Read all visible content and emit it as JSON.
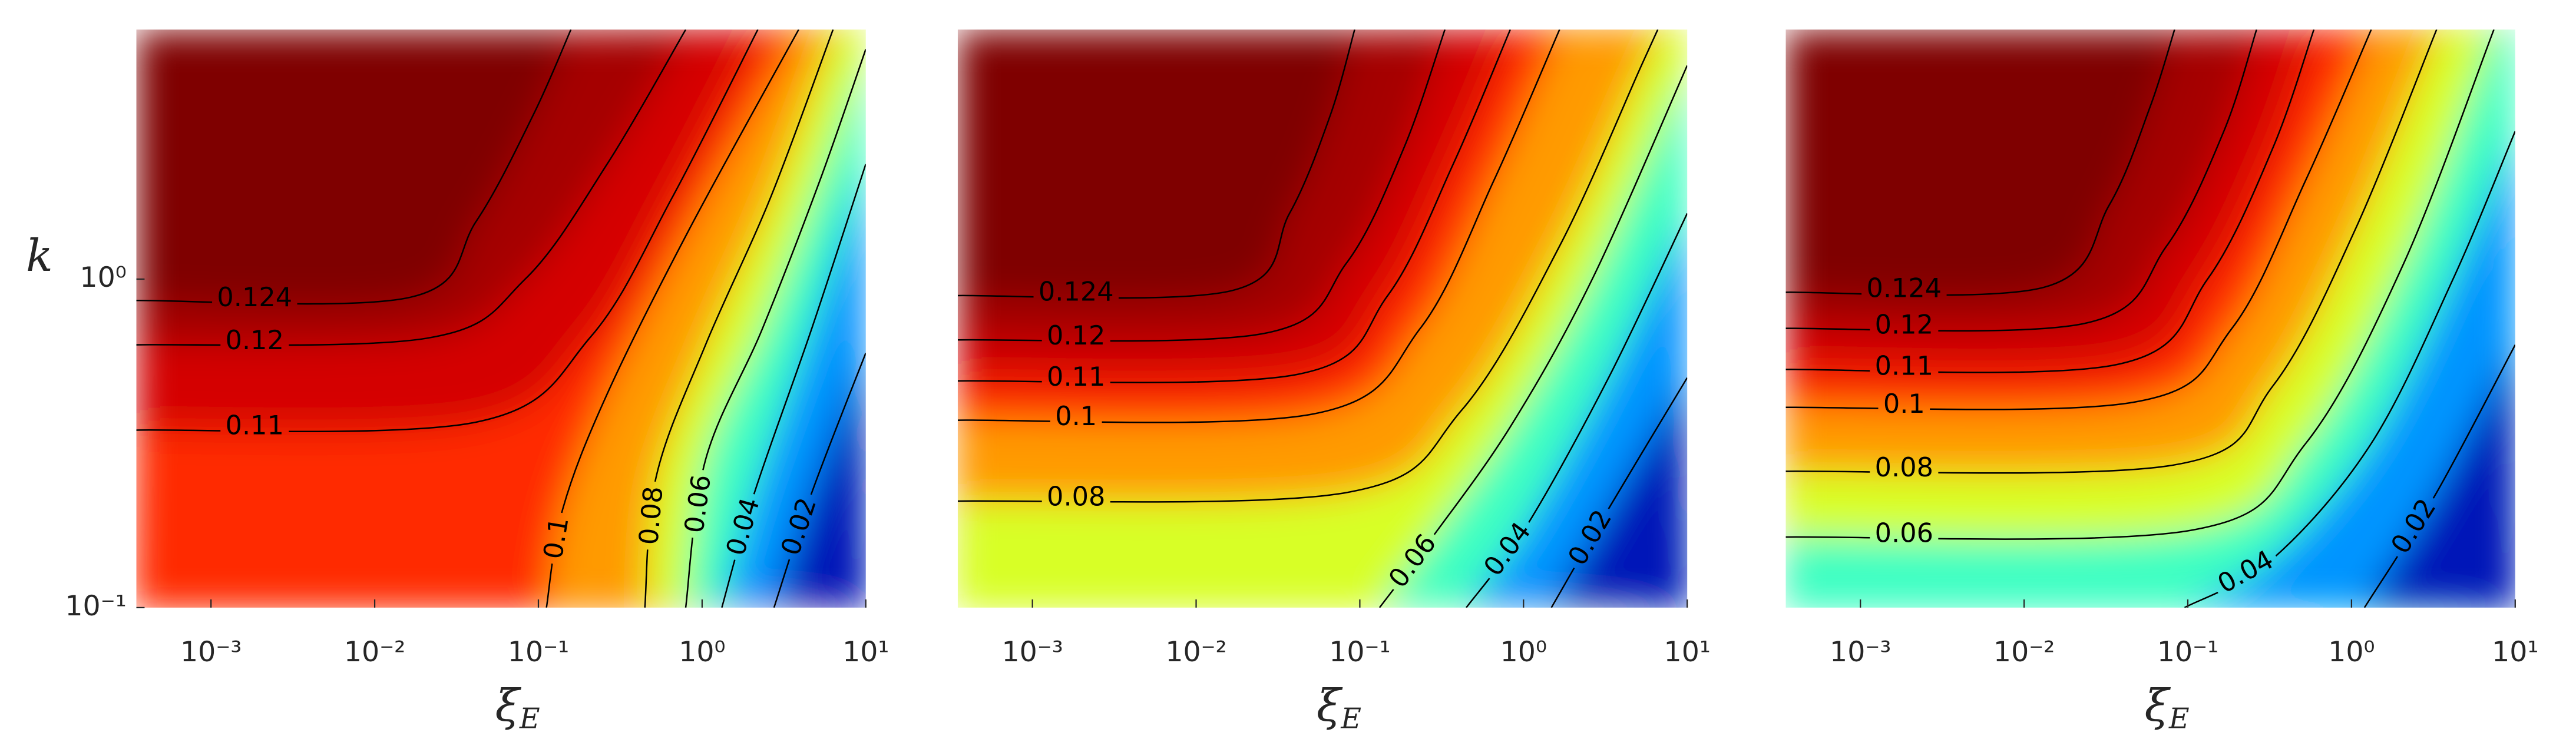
{
  "chart_data": [
    {
      "type": "contour",
      "xlabel": "ξ_E",
      "ylabel": "k",
      "xscale": "log",
      "yscale": "log",
      "xlim": [
        0.00035,
        10
      ],
      "ylim": [
        0.1,
        5.75
      ],
      "xticks": [
        {
          "value": 0.001,
          "label": "10⁻³"
        },
        {
          "value": 0.01,
          "label": "10⁻²"
        },
        {
          "value": 0.1,
          "label": "10⁻¹"
        },
        {
          "value": 1,
          "label": "10⁰"
        },
        {
          "value": 10,
          "label": "10¹"
        }
      ],
      "yticks": [
        {
          "value": 0.1,
          "label": "10⁻¹"
        },
        {
          "value": 1,
          "label": "10⁰"
        }
      ],
      "top_color": "#7f0000",
      "contours": [
        {
          "value": 0.124,
          "color": "#a50000",
          "x": [
            0.00035,
            0.0166,
            0.0417,
            0.093,
            0.158
          ],
          "y": [
            0.861,
            0.881,
            1.5,
            3.16,
            5.75
          ]
        },
        {
          "value": 0.12,
          "color": "#d40000",
          "x": [
            0.00035,
            0.0209,
            0.083,
            0.263,
            0.794
          ],
          "y": [
            0.631,
            0.661,
            1,
            2.24,
            5.75
          ]
        },
        {
          "value": 0.11,
          "color": "#ff2a00",
          "x": [
            0.00035,
            0.0417,
            0.209,
            0.66,
            2.19
          ],
          "y": [
            0.347,
            0.367,
            0.668,
            1.78,
            5.75
          ]
        },
        {
          "value": 0.1,
          "color": "#ff9a00",
          "x": [
            0.112,
            0.141,
            0.263,
            0.83,
            3.89
          ],
          "y": [
            0.1,
            0.2,
            0.447,
            1.41,
            5.75
          ]
        },
        {
          "value": 0.08,
          "color": "#d8ff28",
          "x": [
            0.447,
            0.525,
            1.05,
            2.63,
            6.31
          ],
          "y": [
            0.1,
            0.251,
            0.631,
            1.78,
            5.75
          ]
        },
        {
          "value": 0.06,
          "color": "#3dffc2",
          "x": [
            0.794,
            1.05,
            2.34,
            5.25,
            10
          ],
          "y": [
            0.1,
            0.282,
            0.708,
            2.0,
            5.01
          ]
        },
        {
          "value": 0.04,
          "color": "#0094ff",
          "x": [
            1.32,
            2.09,
            4.68,
            10
          ],
          "y": [
            0.1,
            0.224,
            0.708,
            2.24
          ]
        },
        {
          "value": 0.02,
          "color": "#0018b8",
          "x": [
            2.75,
            4.68,
            10
          ],
          "y": [
            0.1,
            0.224,
            0.596
          ]
        }
      ]
    },
    {
      "type": "contour",
      "xlabel": "ξ_E",
      "xscale": "log",
      "yscale": "log",
      "xlim": [
        0.00035,
        10
      ],
      "ylim": [
        0.1,
        5.75
      ],
      "xticks": [
        {
          "value": 0.001,
          "label": "10⁻³"
        },
        {
          "value": 0.01,
          "label": "10⁻²"
        },
        {
          "value": 0.1,
          "label": "10⁻¹"
        },
        {
          "value": 1,
          "label": "10⁰"
        },
        {
          "value": 10,
          "label": "10¹"
        }
      ],
      "top_color": "#7f0000",
      "contours": [
        {
          "value": 0.124,
          "color": "#a50000",
          "x": [
            0.00035,
            0.0166,
            0.0372,
            0.0661,
            0.093
          ],
          "y": [
            0.891,
            0.923,
            1.585,
            3.16,
            5.75
          ]
        },
        {
          "value": 0.12,
          "color": "#d40000",
          "x": [
            0.00035,
            0.0263,
            0.083,
            0.186,
            0.331
          ],
          "y": [
            0.653,
            0.684,
            1.12,
            2.51,
            5.75
          ]
        },
        {
          "value": 0.11,
          "color": "#ff2a00",
          "x": [
            0.00035,
            0.0417,
            0.148,
            0.372,
            0.83
          ],
          "y": [
            0.49,
            0.513,
            0.891,
            2.24,
            5.75
          ]
        },
        {
          "value": 0.1,
          "color": "#ff9a00",
          "x": [
            0.00035,
            0.0525,
            0.234,
            0.66,
            1.66
          ],
          "y": [
            0.372,
            0.389,
            0.708,
            2.0,
            5.75
          ]
        },
        {
          "value": 0.08,
          "color": "#d8ff28",
          "x": [
            0.00035,
            0.083,
            0.417,
            1.66,
            5.25,
            6.61
          ],
          "y": [
            0.211,
            0.224,
            0.398,
            1.26,
            4.47,
            5.75
          ]
        },
        {
          "value": 0.06,
          "color": "#3dffc2",
          "x": [
            0.132,
            0.263,
            0.83,
            2.63,
            10
          ],
          "y": [
            0.1,
            0.158,
            0.355,
            1,
            4.47
          ]
        },
        {
          "value": 0.04,
          "color": "#0094ff",
          "x": [
            0.447,
            1.05,
            3.31,
            10
          ],
          "y": [
            0.1,
            0.178,
            0.501,
            1.585
          ]
        },
        {
          "value": 0.02,
          "color": "#0018b8",
          "x": [
            1.48,
            3.31,
            10
          ],
          "y": [
            0.1,
            0.2,
            0.501
          ]
        }
      ]
    },
    {
      "type": "contour",
      "xlabel": "ξ_E",
      "xscale": "log",
      "yscale": "log",
      "xlim": [
        0.00035,
        10
      ],
      "ylim": [
        0.1,
        5.75
      ],
      "xticks": [
        {
          "value": 0.001,
          "label": "10⁻³"
        },
        {
          "value": 0.01,
          "label": "10⁻²"
        },
        {
          "value": 0.1,
          "label": "10⁻¹"
        },
        {
          "value": 1,
          "label": "10⁰"
        },
        {
          "value": 10,
          "label": "10¹"
        }
      ],
      "top_color": "#7f0000",
      "contours": [
        {
          "value": 0.124,
          "color": "#a50000",
          "x": [
            0.00035,
            0.0132,
            0.0331,
            0.0589,
            0.083
          ],
          "y": [
            0.912,
            0.944,
            1.68,
            3.35,
            5.75
          ]
        },
        {
          "value": 0.12,
          "color": "#d40000",
          "x": [
            0.00035,
            0.0234,
            0.0741,
            0.166,
            0.263
          ],
          "y": [
            0.708,
            0.733,
            1.26,
            2.82,
            5.75
          ]
        },
        {
          "value": 0.11,
          "color": "#ff2a00",
          "x": [
            0.00035,
            0.0372,
            0.132,
            0.331,
            0.589
          ],
          "y": [
            0.531,
            0.55,
            1,
            2.51,
            5.75
          ]
        },
        {
          "value": 0.1,
          "color": "#ff9a00",
          "x": [
            0.00035,
            0.0468,
            0.186,
            0.525,
            1.32
          ],
          "y": [
            0.407,
            0.422,
            0.708,
            2.0,
            5.75
          ]
        },
        {
          "value": 0.08,
          "color": "#d8ff28",
          "x": [
            0.00035,
            0.083,
            0.331,
            1.05,
            3.31
          ],
          "y": [
            0.26,
            0.272,
            0.473,
            1.41,
            5.75
          ]
        },
        {
          "value": 0.06,
          "color": "#3dffc2",
          "x": [
            0.00035,
            0.105,
            0.525,
            2.09,
            7.41
          ],
          "y": [
            0.164,
            0.172,
            0.316,
            1.12,
            5.75
          ]
        },
        {
          "value": 0.04,
          "color": "#0094ff",
          "x": [
            0.0955,
            0.331,
            1.32,
            4.17,
            10
          ],
          "y": [
            0.1,
            0.141,
            0.316,
            1,
            2.82
          ]
        },
        {
          "value": 0.02,
          "color": "#0018b8",
          "x": [
            1.2,
            3.31,
            10
          ],
          "y": [
            0.1,
            0.224,
            0.631
          ]
        }
      ]
    }
  ]
}
